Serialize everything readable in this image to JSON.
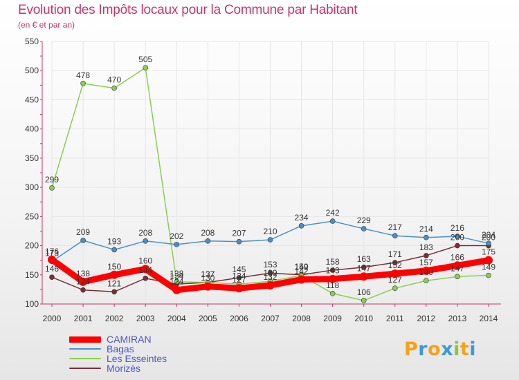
{
  "chart_data": {
    "type": "line",
    "title": "Evolution des Impôts locaux pour la Commune par Habitant",
    "subtitle": "(en € et par an)",
    "xlabel": "",
    "ylabel": "",
    "ylim": [
      100,
      550
    ],
    "yticks": [
      100,
      150,
      200,
      250,
      300,
      350,
      400,
      450,
      500,
      550
    ],
    "grid": true,
    "legend_position": "bottom-left",
    "categories": [
      "2000",
      "2001",
      "2002",
      "2003",
      "2004",
      "2005",
      "2006",
      "2007",
      "2008",
      "2009",
      "2010",
      "2011",
      "2012",
      "2013",
      "2014"
    ],
    "series": [
      {
        "name": "Morizès",
        "color": "#7a2e36",
        "values": [
          146,
          124,
          121,
          144,
          134,
          137,
          145,
          153,
          150,
          158,
          163,
          171,
          183,
          200,
          200
        ]
      },
      {
        "name": "Les Esseintes",
        "color": "#86d14e",
        "values": [
          299,
          478,
          470,
          505,
          138,
          137,
          134,
          139,
          149,
          118,
          106,
          127,
          140,
          147,
          149
        ]
      },
      {
        "name": "Bagas",
        "color": "#4a90c8",
        "values": [
          173,
          209,
          193,
          208,
          202,
          208,
          207,
          210,
          234,
          242,
          229,
          217,
          214,
          216,
          204
        ]
      },
      {
        "name": "CAMIRAN",
        "color": "#ff0000",
        "values": [
          176,
          138,
          150,
          160,
          124,
          130,
          127,
          132,
          142,
          143,
          147,
          152,
          157,
          166,
          175
        ]
      }
    ]
  },
  "logo": {
    "letters": [
      "P",
      "r",
      "o",
      "x",
      "i",
      "t",
      "i"
    ],
    "colors": [
      "#f7a11a",
      "#3a9ad9",
      "#f7a11a",
      "#3a9ad9",
      "#8cc63f",
      "#f7a11a",
      "#3a9ad9"
    ]
  }
}
